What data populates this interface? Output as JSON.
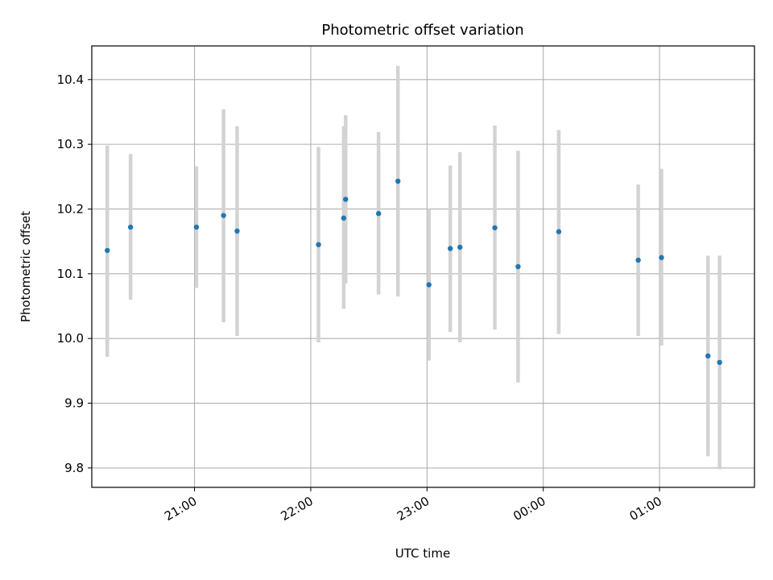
{
  "chart_data": {
    "type": "scatter",
    "title": "Photometric offset variation",
    "xlabel": "UTC time",
    "ylabel": "Photometric offset",
    "x_tick_labels": [
      "21:00",
      "22:00",
      "23:00",
      "00:00",
      "01:00"
    ],
    "y_tick_labels": [
      "9.8",
      "9.9",
      "10.0",
      "10.1",
      "10.2",
      "10.3",
      "10.4"
    ],
    "x_axis_start": "20:07",
    "x_axis_end": "01:49",
    "ylim": [
      9.77,
      10.452
    ],
    "grid": true,
    "point_color": "#1f77b4",
    "errorbar_color": "#d3d3d3",
    "points": [
      {
        "x": "20:15",
        "y": 10.136,
        "ylow": 9.972,
        "yhigh": 10.298
      },
      {
        "x": "20:27",
        "y": 10.172,
        "ylow": 10.06,
        "yhigh": 10.285
      },
      {
        "x": "21:01",
        "y": 10.172,
        "ylow": 10.078,
        "yhigh": 10.266
      },
      {
        "x": "21:15",
        "y": 10.19,
        "ylow": 10.025,
        "yhigh": 10.354
      },
      {
        "x": "21:22",
        "y": 10.166,
        "ylow": 10.004,
        "yhigh": 10.328
      },
      {
        "x": "22:04",
        "y": 10.145,
        "ylow": 9.994,
        "yhigh": 10.296
      },
      {
        "x": "22:17",
        "y": 10.186,
        "ylow": 10.046,
        "yhigh": 10.328
      },
      {
        "x": "22:18",
        "y": 10.215,
        "ylow": 10.085,
        "yhigh": 10.345
      },
      {
        "x": "22:35",
        "y": 10.193,
        "ylow": 10.068,
        "yhigh": 10.319
      },
      {
        "x": "22:45",
        "y": 10.243,
        "ylow": 10.065,
        "yhigh": 10.421
      },
      {
        "x": "23:01",
        "y": 10.083,
        "ylow": 9.966,
        "yhigh": 10.2
      },
      {
        "x": "23:12",
        "y": 10.139,
        "ylow": 10.01,
        "yhigh": 10.267
      },
      {
        "x": "23:17",
        "y": 10.141,
        "ylow": 9.994,
        "yhigh": 10.288
      },
      {
        "x": "23:35",
        "y": 10.171,
        "ylow": 10.014,
        "yhigh": 10.329
      },
      {
        "x": "23:47",
        "y": 10.111,
        "ylow": 9.932,
        "yhigh": 10.29
      },
      {
        "x": "00:08",
        "y": 10.165,
        "ylow": 10.007,
        "yhigh": 10.322
      },
      {
        "x": "00:49",
        "y": 10.121,
        "ylow": 10.004,
        "yhigh": 10.238
      },
      {
        "x": "01:01",
        "y": 10.125,
        "ylow": 9.989,
        "yhigh": 10.262
      },
      {
        "x": "01:25",
        "y": 9.973,
        "ylow": 9.818,
        "yhigh": 10.128
      },
      {
        "x": "01:31",
        "y": 9.963,
        "ylow": 9.798,
        "yhigh": 10.128
      }
    ]
  }
}
